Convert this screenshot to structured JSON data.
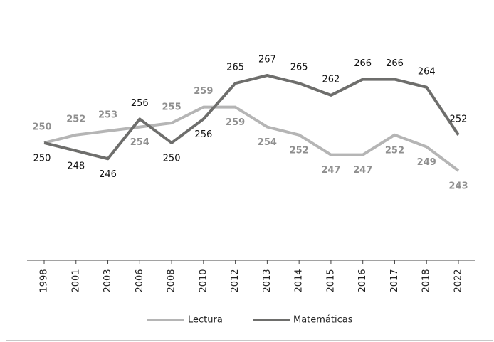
{
  "chart_data": {
    "type": "line",
    "categories": [
      "1998",
      "2001",
      "2003",
      "2006",
      "2008",
      "2010",
      "2012",
      "2013",
      "2014",
      "2015",
      "2016",
      "2017",
      "2018",
      "2022"
    ],
    "series": [
      {
        "name": "Lectura",
        "color": "#b5b5b5",
        "values": [
          250,
          252,
          253,
          254,
          255,
          259,
          259,
          254,
          252,
          247,
          247,
          252,
          249,
          243
        ]
      },
      {
        "name": "Matemáticas",
        "color": "#6e6e6c",
        "values": [
          250,
          248,
          246,
          256,
          250,
          256,
          265,
          267,
          265,
          262,
          266,
          266,
          264,
          252
        ]
      }
    ],
    "legend": "bottom"
  }
}
